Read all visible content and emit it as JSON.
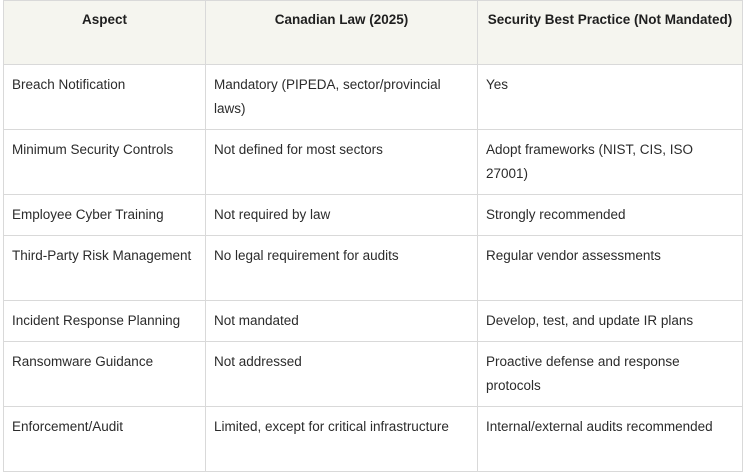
{
  "table": {
    "headers": [
      "Aspect",
      "Canadian Law (2025)",
      "Security Best Practice (Not Mandated)"
    ],
    "rows": [
      [
        "Breach Notification",
        "Mandatory (PIPEDA, sector/provincial laws)",
        "Yes"
      ],
      [
        "Minimum Security Controls",
        "Not defined for most sectors",
        "Adopt frameworks (NIST, CIS, ISO 27001)"
      ],
      [
        "Employee Cyber Training",
        "Not required by law",
        "Strongly recommended"
      ],
      [
        "Third-Party Risk Management",
        "No legal requirement for audits",
        "Regular vendor assessments"
      ],
      [
        "Incident Response Planning",
        "Not mandated",
        "Develop, test, and update IR plans"
      ],
      [
        "Ransomware Guidance",
        "Not addressed",
        "Proactive defense and response protocols"
      ],
      [
        "Enforcement/Audit",
        "Limited, except for critical infrastructure",
        "Internal/external audits recommended"
      ]
    ]
  }
}
